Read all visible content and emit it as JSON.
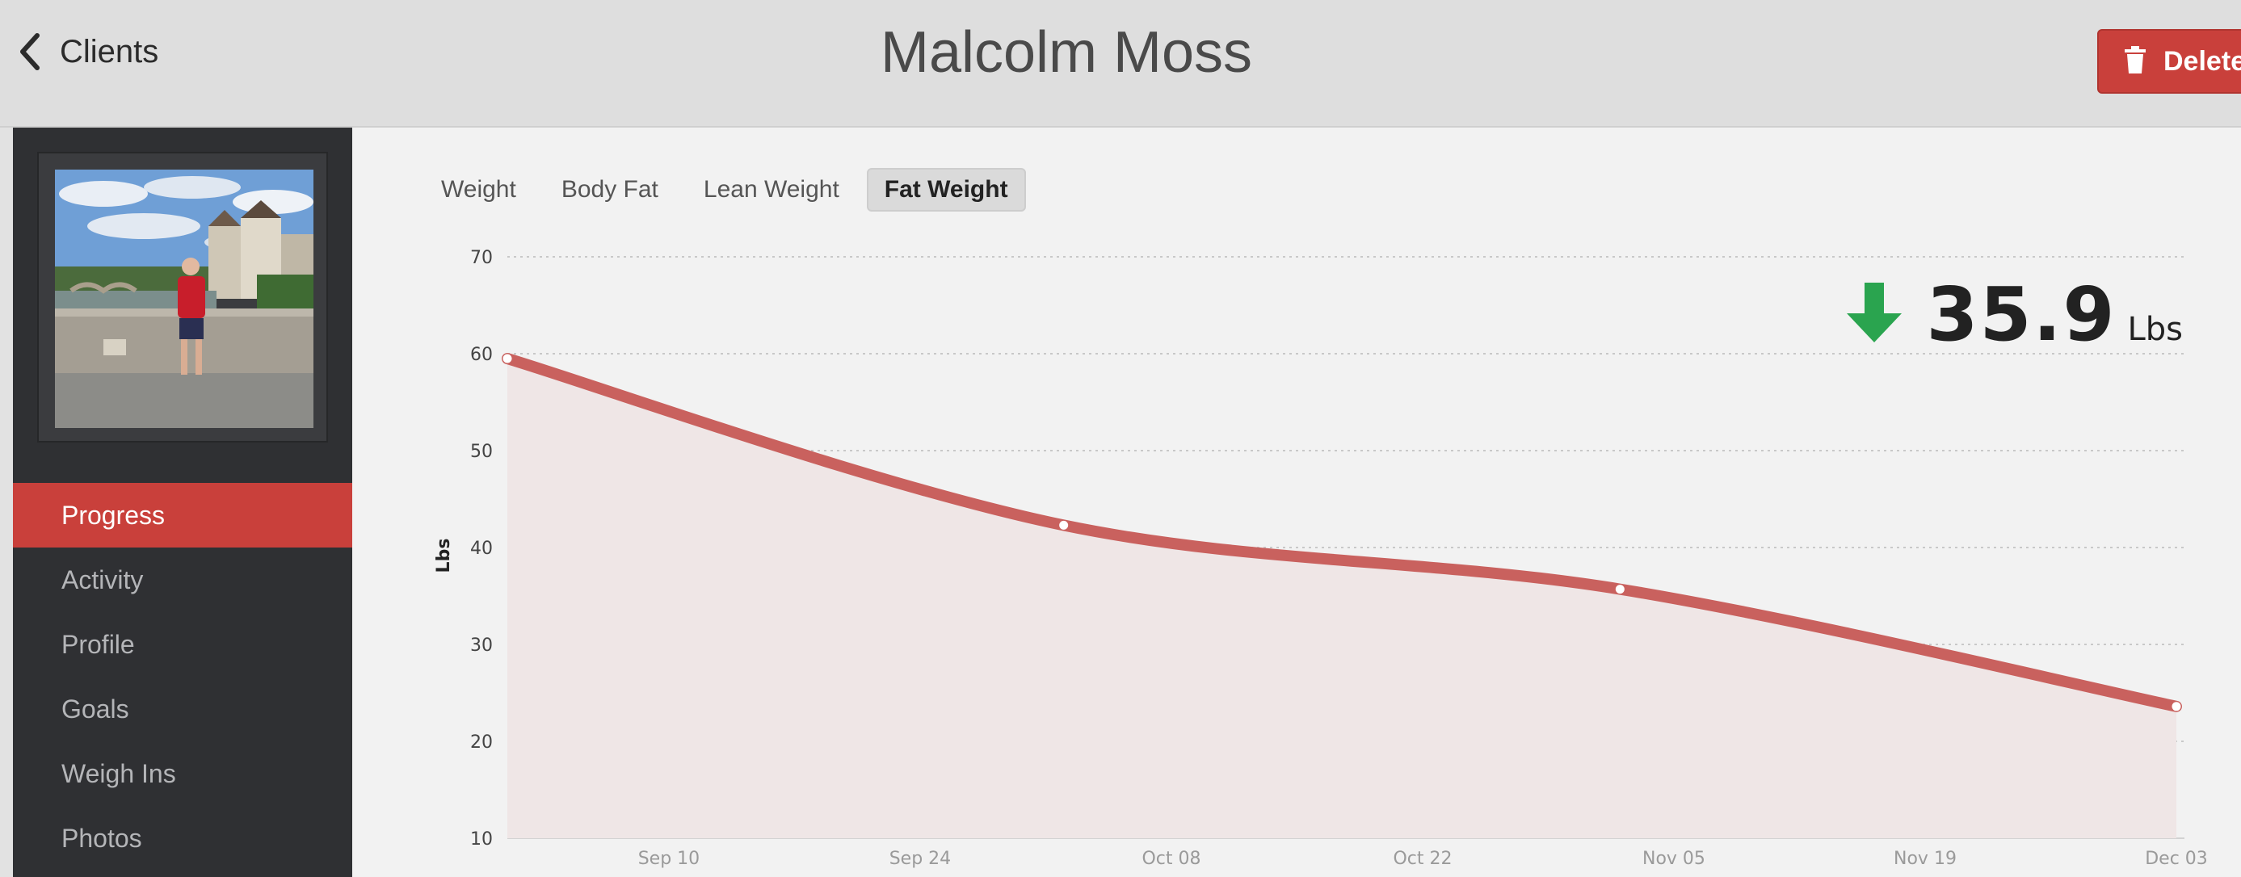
{
  "header": {
    "back_label": "Clients",
    "title": "Malcolm Moss",
    "delete_label": "Delete"
  },
  "sidebar": {
    "items": [
      {
        "label": "Progress",
        "active": true
      },
      {
        "label": "Activity",
        "active": false
      },
      {
        "label": "Profile",
        "active": false
      },
      {
        "label": "Goals",
        "active": false
      },
      {
        "label": "Weigh Ins",
        "active": false
      },
      {
        "label": "Photos",
        "active": false
      }
    ]
  },
  "tabs": [
    {
      "label": "Weight",
      "active": false
    },
    {
      "label": "Body Fat",
      "active": false
    },
    {
      "label": "Lean Weight",
      "active": false
    },
    {
      "label": "Fat Weight",
      "active": true
    }
  ],
  "summary": {
    "value": "35.9",
    "unit": "Lbs",
    "direction_icon": "arrow-down-icon"
  },
  "colors": {
    "accent": "#c9403b",
    "line": "#c9615e",
    "area": "#efe6e6",
    "down_arrow": "#2aa44f"
  },
  "chart_data": {
    "type": "area",
    "ylabel": "Lbs",
    "ylim": [
      10,
      70
    ],
    "yticks": [
      70,
      60,
      50,
      40,
      30,
      20,
      10
    ],
    "xticks": [
      "Sep 10",
      "Sep 24",
      "Oct 08",
      "Oct 22",
      "Nov 05",
      "Nov 19",
      "Dec 03"
    ],
    "xlim": [
      "2013-09-01",
      "2013-12-03"
    ],
    "grid": true,
    "series": [
      {
        "points": [
          {
            "x": "2013-09-01",
            "y": 59.5
          },
          {
            "x": "2013-10-02",
            "y": 42.3
          },
          {
            "x": "2013-11-02",
            "y": 35.7
          },
          {
            "x": "2013-12-03",
            "y": 23.6
          }
        ]
      }
    ]
  }
}
